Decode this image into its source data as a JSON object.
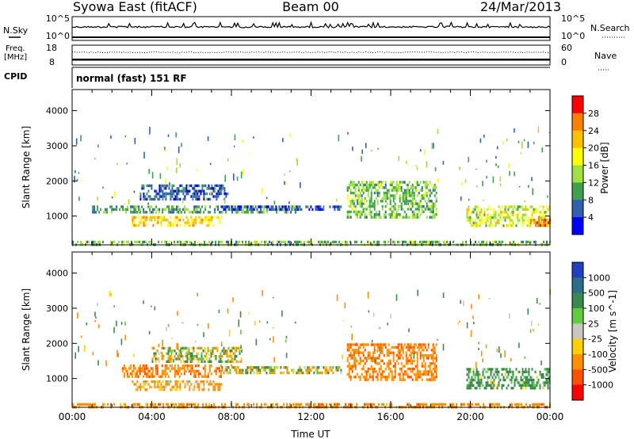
{
  "header": {
    "station": "Syowa East (fitACF)",
    "beam": "Beam 00",
    "date": "24/Mar/2013"
  },
  "strip_panels": {
    "noise": {
      "left_label": "N.Sky",
      "right_label": "N.Search",
      "left_ticks": [
        "10^5",
        "10^0"
      ],
      "right_ticks": [
        "10^5",
        "10^0"
      ]
    },
    "freq": {
      "left_label_1": "Freq.",
      "left_label_2": "[MHz]",
      "right_label": "Nave",
      "left_ticks": [
        "18",
        "8"
      ],
      "right_ticks": [
        "60",
        "0"
      ]
    },
    "cpid": {
      "label": "CPID",
      "text": "normal (fast) 151 RF"
    }
  },
  "chart_data": [
    {
      "type": "heatmap",
      "name": "power",
      "ylabel": "Slant Range [km]",
      "ylim": [
        180,
        4600
      ],
      "xlim": [
        0,
        24
      ],
      "yticks": [
        "1000",
        "2000",
        "3000",
        "4000"
      ],
      "colorbar": {
        "label": "Power [dB]",
        "ticks": [
          "28",
          "24",
          "20",
          "16",
          "12",
          "8",
          "4"
        ],
        "colors": [
          "#ff0000",
          "#ff7f00",
          "#ffc000",
          "#ffff00",
          "#a0e040",
          "#3fa050",
          "#3060b0",
          "#0000ff"
        ]
      },
      "echo_regions_approx": [
        {
          "t": [
            0.0,
            24.0
          ],
          "range": [
            200,
            300
          ],
          "dominant_db": 12
        },
        {
          "t": [
            1.0,
            11.5
          ],
          "range": [
            1100,
            1300
          ],
          "dominant_db": 10
        },
        {
          "t": [
            3.0,
            7.5
          ],
          "range": [
            700,
            1000
          ],
          "dominant_db": 20
        },
        {
          "t": [
            3.4,
            7.8
          ],
          "range": [
            1500,
            1900
          ],
          "dominant_db": 6
        },
        {
          "t": [
            7.5,
            13.5
          ],
          "range": [
            1150,
            1300
          ],
          "dominant_db": 4
        },
        {
          "t": [
            13.8,
            18.3
          ],
          "range": [
            1000,
            2000
          ],
          "dominant_db": 12
        },
        {
          "t": [
            19.8,
            24.0
          ],
          "range": [
            700,
            1300
          ],
          "dominant_db": 16
        },
        {
          "t": [
            23.0,
            24.0
          ],
          "range": [
            750,
            1000
          ],
          "dominant_db": 26
        }
      ]
    },
    {
      "type": "heatmap",
      "name": "velocity",
      "ylabel": "Slant Range [km]",
      "ylim": [
        180,
        4600
      ],
      "xlim": [
        0,
        24
      ],
      "yticks": [
        "1000",
        "2000",
        "3000",
        "4000"
      ],
      "xticks": [
        "00:00",
        "04:00",
        "08:00",
        "12:00",
        "16:00",
        "20:00",
        "00:00"
      ],
      "xlabel": "Time UT",
      "colorbar": {
        "label": "Velocity [m s^-1]",
        "ticks": [
          "1000",
          "500",
          "100",
          "25",
          "-25",
          "-100",
          "-500",
          "-1000"
        ],
        "colors": [
          "#2040c0",
          "#2a6f8a",
          "#3a8a50",
          "#60cc40",
          "#c8c8c0",
          "#ffd000",
          "#ff9000",
          "#ff5000",
          "#ff0000"
        ]
      },
      "echo_regions_approx": [
        {
          "t": [
            0.0,
            24.0
          ],
          "range": [
            200,
            300
          ],
          "dominant_ms": -300
        },
        {
          "t": [
            2.5,
            7.5
          ],
          "range": [
            1050,
            1400
          ],
          "dominant_ms": -400
        },
        {
          "t": [
            3.0,
            7.5
          ],
          "range": [
            650,
            950
          ],
          "dominant_ms": -200
        },
        {
          "t": [
            4.0,
            8.5
          ],
          "range": [
            1500,
            1900
          ],
          "dominant_ms": 0
        },
        {
          "t": [
            7.5,
            13.5
          ],
          "range": [
            1150,
            1350
          ],
          "dominant_ms": 0
        },
        {
          "t": [
            13.8,
            18.3
          ],
          "range": [
            1000,
            2000
          ],
          "dominant_ms": -400
        },
        {
          "t": [
            19.8,
            24.0
          ],
          "range": [
            700,
            1300
          ],
          "dominant_ms": 200
        }
      ]
    }
  ]
}
